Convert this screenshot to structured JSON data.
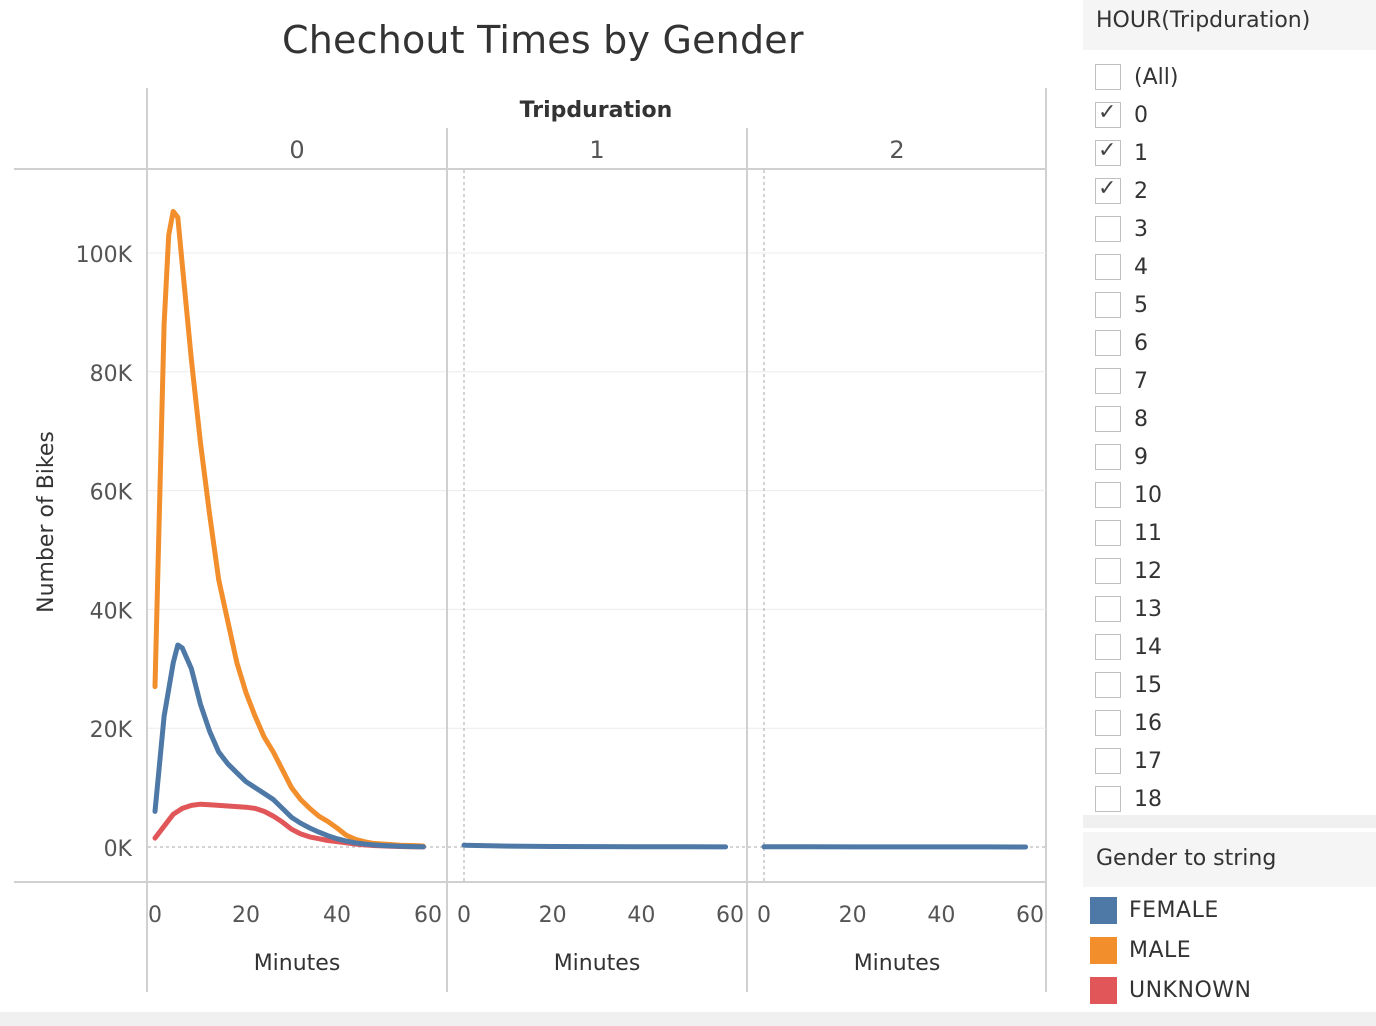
{
  "chart_data": {
    "type": "line",
    "title": "Chechout Times by Gender",
    "column_header": "Tripduration",
    "panels": [
      {
        "label": "0",
        "series": [
          {
            "name": "FEMALE",
            "x": [
              0,
              2,
              4,
              5,
              6,
              8,
              10,
              12,
              14,
              16,
              18,
              20,
              22,
              24,
              26,
              28,
              30,
              32,
              34,
              36,
              38,
              40,
              42,
              44,
              46,
              48,
              50,
              52,
              54,
              56,
              58,
              59
            ],
            "y": [
              6000,
              22000,
              31000,
              34000,
              33500,
              30000,
              24000,
              19500,
              16000,
              14000,
              12500,
              11000,
              10000,
              9000,
              8000,
              6500,
              5000,
              4000,
              3200,
              2500,
              1900,
              1400,
              1000,
              700,
              500,
              350,
              250,
              180,
              120,
              80,
              50,
              40
            ]
          },
          {
            "name": "MALE",
            "x": [
              0,
              2,
              3,
              4,
              5,
              6,
              8,
              10,
              12,
              14,
              16,
              18,
              20,
              22,
              24,
              26,
              28,
              30,
              32,
              34,
              36,
              38,
              40,
              42,
              44,
              46,
              48,
              50,
              52,
              54,
              56,
              58,
              59
            ],
            "y": [
              27000,
              88000,
              103000,
              107000,
              106000,
              98000,
              82000,
              68000,
              56000,
              45000,
              38000,
              31000,
              26000,
              22000,
              18500,
              16000,
              13000,
              10000,
              8000,
              6500,
              5200,
              4300,
              3200,
              2000,
              1300,
              900,
              600,
              500,
              400,
              300,
              250,
              200,
              150
            ]
          },
          {
            "name": "UNKNOWN",
            "x": [
              0,
              2,
              4,
              6,
              8,
              10,
              12,
              14,
              16,
              18,
              20,
              22,
              24,
              26,
              28,
              30,
              32,
              34,
              36,
              38,
              40,
              42,
              44,
              46,
              48,
              50,
              52,
              54,
              56,
              58,
              59
            ],
            "y": [
              1500,
              3500,
              5500,
              6500,
              7000,
              7200,
              7100,
              7000,
              6900,
              6800,
              6700,
              6500,
              6000,
              5200,
              4200,
              3000,
              2200,
              1700,
              1400,
              1100,
              900,
              700,
              500,
              350,
              250,
              180,
              120,
              80,
              50,
              30,
              20
            ]
          }
        ]
      },
      {
        "label": "1",
        "series": [
          {
            "name": "FEMALE",
            "x": [
              0,
              10,
              20,
              30,
              40,
              50,
              59
            ],
            "y": [
              300,
              150,
              80,
              60,
              40,
              30,
              20
            ]
          }
        ]
      },
      {
        "label": "2",
        "series": [
          {
            "name": "FEMALE",
            "x": [
              0,
              10,
              20,
              30,
              40,
              50,
              59
            ],
            "y": [
              40,
              30,
              25,
              20,
              15,
              10,
              8
            ]
          }
        ]
      }
    ],
    "xlabel": "Minutes",
    "ylabel": "Number of Bikes",
    "xlim": [
      0,
      60
    ],
    "ylim": [
      0,
      110000
    ],
    "x_ticks": [
      "0",
      "20",
      "40",
      "60"
    ],
    "y_ticks": [
      "0K",
      "20K",
      "40K",
      "60K",
      "80K",
      "100K"
    ],
    "y_tick_values": [
      0,
      20000,
      40000,
      60000,
      80000,
      100000
    ],
    "x_tick_values": [
      0,
      20,
      40,
      60
    ],
    "grid": true
  },
  "colors": {
    "FEMALE": "#4e79a7",
    "MALE": "#f28e2b",
    "UNKNOWN": "#e15759"
  },
  "filter": {
    "title": "HOUR(Tripduration)",
    "items": [
      {
        "label": "(All)",
        "checked": false
      },
      {
        "label": "0",
        "checked": true
      },
      {
        "label": "1",
        "checked": true
      },
      {
        "label": "2",
        "checked": true
      },
      {
        "label": "3",
        "checked": false
      },
      {
        "label": "4",
        "checked": false
      },
      {
        "label": "5",
        "checked": false
      },
      {
        "label": "6",
        "checked": false
      },
      {
        "label": "7",
        "checked": false
      },
      {
        "label": "8",
        "checked": false
      },
      {
        "label": "9",
        "checked": false
      },
      {
        "label": "10",
        "checked": false
      },
      {
        "label": "11",
        "checked": false
      },
      {
        "label": "12",
        "checked": false
      },
      {
        "label": "13",
        "checked": false
      },
      {
        "label": "14",
        "checked": false
      },
      {
        "label": "15",
        "checked": false
      },
      {
        "label": "16",
        "checked": false
      },
      {
        "label": "17",
        "checked": false
      },
      {
        "label": "18",
        "checked": false
      }
    ]
  },
  "legend": {
    "title": "Gender to string",
    "items": [
      {
        "label": "FEMALE",
        "color": "#4e79a7"
      },
      {
        "label": "MALE",
        "color": "#f28e2b"
      },
      {
        "label": "UNKNOWN",
        "color": "#e15759"
      }
    ]
  }
}
